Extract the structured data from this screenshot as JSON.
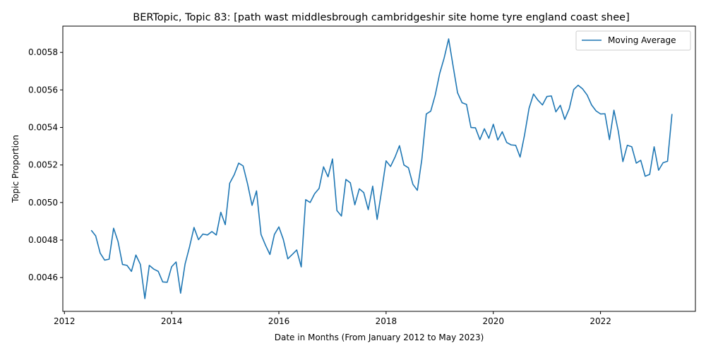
{
  "chart_data": {
    "type": "line",
    "title": "BERTopic, Topic 83: [path wast middlesbrough cambridgeshir site home tyre england coast shee]",
    "xlabel": "Date in Months (From January 2012 to May 2023)",
    "ylabel": "Topic Proportion",
    "xlim": [
      2011.97,
      2023.77
    ],
    "ylim": [
      0.00442,
      0.00594
    ],
    "x_ticks": [
      2012,
      2014,
      2016,
      2018,
      2020,
      2022
    ],
    "x_tick_labels": [
      "2012",
      "2014",
      "2016",
      "2018",
      "2020",
      "2022"
    ],
    "y_ticks": [
      0.0046,
      0.0048,
      0.005,
      0.0052,
      0.0054,
      0.0056,
      0.0058
    ],
    "y_tick_labels": [
      "0.0046",
      "0.0048",
      "0.0050",
      "0.0052",
      "0.0054",
      "0.0056",
      "0.0058"
    ],
    "legend_position": "top-right",
    "series": [
      {
        "name": "Moving Average",
        "color": "#1f77b4",
        "x": [
          2012.5,
          2012.583,
          2012.667,
          2012.75,
          2012.833,
          2012.917,
          2013.0,
          2013.083,
          2013.167,
          2013.25,
          2013.333,
          2013.417,
          2013.5,
          2013.583,
          2013.667,
          2013.75,
          2013.833,
          2013.917,
          2014.0,
          2014.083,
          2014.167,
          2014.25,
          2014.333,
          2014.417,
          2014.5,
          2014.583,
          2014.667,
          2014.75,
          2014.833,
          2014.917,
          2015.0,
          2015.083,
          2015.167,
          2015.25,
          2015.333,
          2015.417,
          2015.5,
          2015.583,
          2015.667,
          2015.75,
          2015.833,
          2015.917,
          2016.0,
          2016.083,
          2016.167,
          2016.25,
          2016.333,
          2016.417,
          2016.5,
          2016.583,
          2016.667,
          2016.75,
          2016.833,
          2016.917,
          2017.0,
          2017.083,
          2017.167,
          2017.25,
          2017.333,
          2017.417,
          2017.5,
          2017.583,
          2017.667,
          2017.75,
          2017.833,
          2017.917,
          2018.0,
          2018.083,
          2018.167,
          2018.25,
          2018.333,
          2018.417,
          2018.5,
          2018.583,
          2018.667,
          2018.75,
          2018.833,
          2018.917,
          2019.0,
          2019.083,
          2019.167,
          2019.25,
          2019.333,
          2019.417,
          2019.5,
          2019.583,
          2019.667,
          2019.75,
          2019.833,
          2019.917,
          2020.0,
          2020.083,
          2020.167,
          2020.25,
          2020.333,
          2020.417,
          2020.5,
          2020.583,
          2020.667,
          2020.75,
          2020.833,
          2020.917,
          2021.0,
          2021.083,
          2021.167,
          2021.25,
          2021.333,
          2021.417,
          2021.5,
          2021.583,
          2021.667,
          2021.75,
          2021.833,
          2021.917,
          2022.0,
          2022.083,
          2022.167,
          2022.25,
          2022.333,
          2022.417,
          2022.5,
          2022.583,
          2022.667,
          2022.75,
          2022.833,
          2022.917,
          2023.0,
          2023.083,
          2023.167,
          2023.25,
          2023.333
        ],
        "values": [
          0.004852,
          0.004822,
          0.00473,
          0.004693,
          0.004698,
          0.004863,
          0.004792,
          0.00467,
          0.004665,
          0.004633,
          0.00472,
          0.00467,
          0.004488,
          0.004665,
          0.004645,
          0.004633,
          0.004577,
          0.004575,
          0.004658,
          0.004683,
          0.004517,
          0.004672,
          0.004763,
          0.004867,
          0.004802,
          0.004832,
          0.004827,
          0.004845,
          0.004827,
          0.004948,
          0.004882,
          0.005103,
          0.005148,
          0.00521,
          0.005195,
          0.005098,
          0.004985,
          0.005062,
          0.00483,
          0.004773,
          0.004723,
          0.00483,
          0.00487,
          0.004803,
          0.0047,
          0.004723,
          0.004747,
          0.004657,
          0.005015,
          0.005,
          0.005047,
          0.005075,
          0.00519,
          0.005137,
          0.005232,
          0.004957,
          0.004928,
          0.005123,
          0.005105,
          0.004988,
          0.005073,
          0.005053,
          0.004962,
          0.005087,
          0.00491,
          0.005063,
          0.005222,
          0.005192,
          0.005242,
          0.005303,
          0.0052,
          0.005185,
          0.005097,
          0.005065,
          0.00523,
          0.005472,
          0.005487,
          0.005573,
          0.005688,
          0.00577,
          0.005872,
          0.005727,
          0.005585,
          0.005532,
          0.005523,
          0.0054,
          0.005398,
          0.005335,
          0.005393,
          0.005342,
          0.005417,
          0.005333,
          0.005377,
          0.00532,
          0.005307,
          0.005305,
          0.005242,
          0.00536,
          0.005502,
          0.005578,
          0.005545,
          0.00552,
          0.005565,
          0.005568,
          0.005483,
          0.005518,
          0.005443,
          0.0055,
          0.005602,
          0.005625,
          0.005605,
          0.005573,
          0.00552,
          0.005488,
          0.005472,
          0.005473,
          0.005335,
          0.005492,
          0.005378,
          0.005218,
          0.005305,
          0.005297,
          0.00521,
          0.005225,
          0.00514,
          0.00515,
          0.005297,
          0.005172,
          0.005212,
          0.00522,
          0.005472
        ]
      }
    ]
  }
}
